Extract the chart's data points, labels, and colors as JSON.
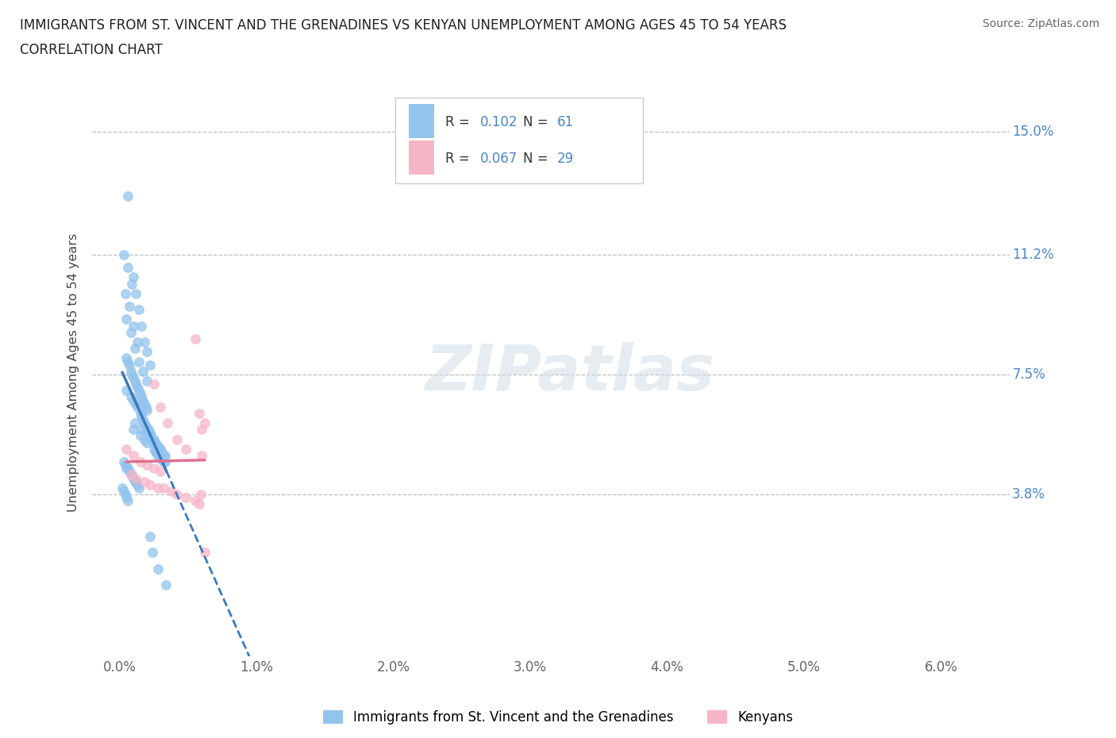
{
  "title_line1": "IMMIGRANTS FROM ST. VINCENT AND THE GRENADINES VS KENYAN UNEMPLOYMENT AMONG AGES 45 TO 54 YEARS",
  "title_line2": "CORRELATION CHART",
  "source": "Source: ZipAtlas.com",
  "ylabel": "Unemployment Among Ages 45 to 54 years",
  "ytick_labels": [
    "3.8%",
    "7.5%",
    "11.2%",
    "15.0%"
  ],
  "ytick_values": [
    0.038,
    0.075,
    0.112,
    0.15
  ],
  "xtick_labels": [
    "0.0%",
    "1.0%",
    "2.0%",
    "3.0%",
    "4.0%",
    "5.0%",
    "6.0%"
  ],
  "xtick_values": [
    0.0,
    0.01,
    0.02,
    0.03,
    0.04,
    0.05,
    0.06
  ],
  "xlim": [
    -0.002,
    0.065
  ],
  "ylim": [
    -0.012,
    0.163
  ],
  "blue_color": "#93c4ed",
  "pink_color": "#f7b6c8",
  "blue_line_color": "#3a7abf",
  "pink_line_color": "#e07090",
  "blue_R": 0.102,
  "blue_N": 61,
  "pink_R": 0.067,
  "pink_N": 29,
  "legend_label_blue": "Immigrants from St. Vincent and the Grenadines",
  "legend_label_pink": "Kenyans",
  "watermark": "ZIPatlas",
  "accent_color": "#4a86c8",
  "blue_scatter_x": [
    0.0005,
    0.0008,
    0.001,
    0.0012,
    0.0013,
    0.0015,
    0.0016,
    0.0017,
    0.0018,
    0.0019,
    0.002,
    0.0021,
    0.0022,
    0.0023,
    0.0024,
    0.0025,
    0.0026,
    0.0027,
    0.0028,
    0.0029,
    0.003,
    0.0031,
    0.0032,
    0.0033,
    0.0005,
    0.0006,
    0.0007,
    0.0008,
    0.0009,
    0.001,
    0.0011,
    0.0012,
    0.0013,
    0.0014,
    0.0015,
    0.0016,
    0.0017,
    0.0018,
    0.0019,
    0.002,
    0.0003,
    0.0004,
    0.0005,
    0.0006,
    0.0007,
    0.0008,
    0.0009,
    0.001,
    0.0011,
    0.0012,
    0.0013,
    0.0014,
    0.0002,
    0.0003,
    0.0004,
    0.0005,
    0.0006,
    0.0022,
    0.0024,
    0.0028,
    0.0034
  ],
  "blue_scatter_y": [
    0.07,
    0.068,
    0.067,
    0.066,
    0.065,
    0.063,
    0.062,
    0.061,
    0.06,
    0.059,
    0.058,
    0.058,
    0.057,
    0.056,
    0.055,
    0.055,
    0.054,
    0.053,
    0.053,
    0.052,
    0.052,
    0.051,
    0.05,
    0.05,
    0.08,
    0.079,
    0.078,
    0.076,
    0.075,
    0.074,
    0.073,
    0.072,
    0.071,
    0.07,
    0.069,
    0.068,
    0.067,
    0.066,
    0.065,
    0.064,
    0.048,
    0.047,
    0.046,
    0.046,
    0.045,
    0.044,
    0.044,
    0.043,
    0.042,
    0.042,
    0.041,
    0.04,
    0.04,
    0.039,
    0.038,
    0.037,
    0.036,
    0.025,
    0.02,
    0.015,
    0.01
  ],
  "blue_scatter_x2": [
    0.0006,
    0.001,
    0.0012,
    0.0014,
    0.0016,
    0.0018,
    0.002,
    0.0022,
    0.0005,
    0.0008,
    0.0011,
    0.0014,
    0.0017,
    0.002,
    0.0004,
    0.0007,
    0.001,
    0.0013,
    0.0003,
    0.0006,
    0.0009,
    0.0025,
    0.0026,
    0.0027,
    0.0028,
    0.0029,
    0.003,
    0.0031,
    0.0032,
    0.0033,
    0.001,
    0.0015,
    0.0018,
    0.002,
    0.0011,
    0.0016,
    0.0021,
    0.0025
  ],
  "blue_scatter_y2": [
    0.13,
    0.105,
    0.1,
    0.095,
    0.09,
    0.085,
    0.082,
    0.078,
    0.092,
    0.088,
    0.083,
    0.079,
    0.076,
    0.073,
    0.1,
    0.096,
    0.09,
    0.085,
    0.112,
    0.108,
    0.103,
    0.052,
    0.051,
    0.051,
    0.05,
    0.05,
    0.049,
    0.049,
    0.048,
    0.048,
    0.058,
    0.056,
    0.055,
    0.054,
    0.06,
    0.058,
    0.056,
    0.054
  ],
  "pink_scatter_x": [
    0.0005,
    0.001,
    0.0015,
    0.002,
    0.0025,
    0.003,
    0.0008,
    0.0012,
    0.0018,
    0.0022,
    0.0028,
    0.0032,
    0.0038,
    0.0042,
    0.0048,
    0.0055,
    0.0058,
    0.006,
    0.0062,
    0.0025,
    0.003,
    0.0035,
    0.0042,
    0.0048,
    0.0055,
    0.0058,
    0.006,
    0.0062,
    0.0059
  ],
  "pink_scatter_y": [
    0.052,
    0.05,
    0.048,
    0.047,
    0.046,
    0.045,
    0.044,
    0.043,
    0.042,
    0.041,
    0.04,
    0.04,
    0.039,
    0.038,
    0.037,
    0.036,
    0.035,
    0.05,
    0.06,
    0.072,
    0.065,
    0.06,
    0.055,
    0.052,
    0.086,
    0.063,
    0.058,
    0.02,
    0.038
  ]
}
